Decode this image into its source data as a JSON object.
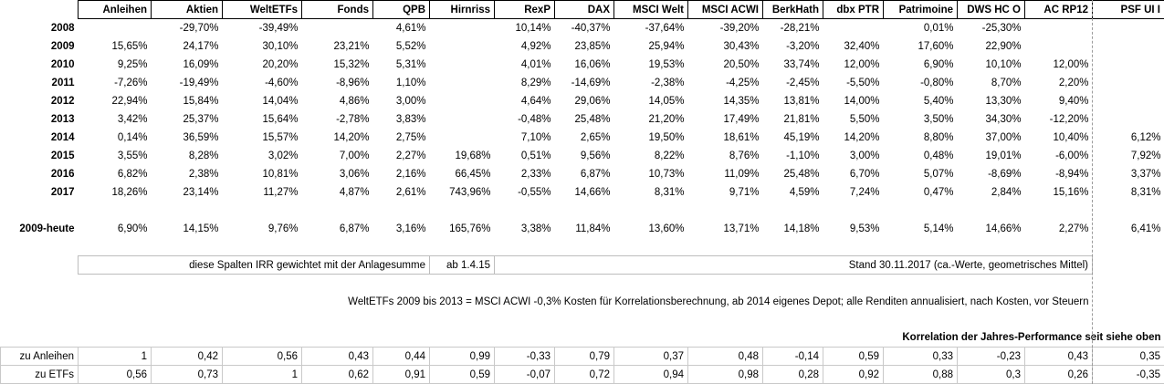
{
  "colors": {
    "negative_value": "#fe0000",
    "muted_value": "#a6a6a6",
    "muted_negative_value": "#f29b9b",
    "header_border": "#000000",
    "note_border": "#bdbdbd",
    "correlation_grid": "#c9c9c9",
    "page_break_line": "#9b9b9b"
  },
  "style_codes": {
    "h": "column-header",
    "y": "year-label-bold",
    "yg": "year-label-gray",
    "n": "negative-red",
    "g": "muted-gray",
    "nm": "muted-red",
    "nb": "note-box-left",
    "nbc": "note-box-center",
    "tc": "note-center-plain",
    "kb": "section-heading-bold",
    "cb": "correlation-value-box",
    "cbl": "correlation-label-box"
  },
  "table": {
    "columns": [
      "",
      "Anleihen",
      "Aktien",
      "WeltETFs",
      "Fonds",
      "QPB",
      "Hirnriss",
      "RexP",
      "DAX",
      "MSCI Welt",
      "MSCI ACWI",
      "BerkHath",
      "dbx PTR",
      "Patrimoine",
      "DWS HC O",
      "AC RP12",
      "PSF UI I"
    ],
    "rows": [
      {
        "name": "row-2008",
        "cells": [
          [
            "2008",
            "yg"
          ],
          [
            "",
            ""
          ],
          [
            "-29,70%",
            "n"
          ],
          [
            "-39,49%",
            "n"
          ],
          [
            "",
            ""
          ],
          [
            "4,61%",
            "g"
          ],
          [
            "",
            ""
          ],
          [
            "10,14%",
            "g"
          ],
          [
            "-40,37%",
            "n"
          ],
          [
            "-37,64%",
            "n"
          ],
          [
            "-39,20%",
            "n"
          ],
          [
            "-28,21%",
            "n"
          ],
          [
            "",
            ""
          ],
          [
            "0,01%",
            ""
          ],
          [
            "-25,30%",
            "n"
          ],
          [
            "",
            ""
          ],
          [
            "",
            ""
          ]
        ]
      },
      {
        "name": "row-2009",
        "cells": [
          [
            "2009",
            "y"
          ],
          [
            "15,65%",
            ""
          ],
          [
            "24,17%",
            ""
          ],
          [
            "30,10%",
            "g"
          ],
          [
            "23,21%",
            ""
          ],
          [
            "5,52%",
            "g"
          ],
          [
            "",
            ""
          ],
          [
            "4,92%",
            ""
          ],
          [
            "23,85%",
            ""
          ],
          [
            "25,94%",
            ""
          ],
          [
            "30,43%",
            ""
          ],
          [
            "-3,20%",
            "n"
          ],
          [
            "32,40%",
            ""
          ],
          [
            "17,60%",
            ""
          ],
          [
            "22,90%",
            ""
          ],
          [
            "",
            ""
          ],
          [
            "",
            ""
          ]
        ]
      },
      {
        "name": "row-2010",
        "cells": [
          [
            "2010",
            "y"
          ],
          [
            "9,25%",
            ""
          ],
          [
            "16,09%",
            ""
          ],
          [
            "20,20%",
            "g"
          ],
          [
            "15,32%",
            ""
          ],
          [
            "5,31%",
            "g"
          ],
          [
            "",
            ""
          ],
          [
            "4,01%",
            ""
          ],
          [
            "16,06%",
            ""
          ],
          [
            "19,53%",
            ""
          ],
          [
            "20,50%",
            ""
          ],
          [
            "33,74%",
            ""
          ],
          [
            "12,00%",
            ""
          ],
          [
            "6,90%",
            ""
          ],
          [
            "10,10%",
            ""
          ],
          [
            "12,00%",
            ""
          ],
          [
            "",
            ""
          ]
        ]
      },
      {
        "name": "row-2011",
        "cells": [
          [
            "2011",
            "y"
          ],
          [
            "-7,26%",
            "n"
          ],
          [
            "-19,49%",
            "n"
          ],
          [
            "-4,60%",
            "nm"
          ],
          [
            "-8,96%",
            "n"
          ],
          [
            "1,10%",
            "g"
          ],
          [
            "",
            ""
          ],
          [
            "8,29%",
            ""
          ],
          [
            "-14,69%",
            "n"
          ],
          [
            "-2,38%",
            "n"
          ],
          [
            "-4,25%",
            "n"
          ],
          [
            "-2,45%",
            "n"
          ],
          [
            "-5,50%",
            "n"
          ],
          [
            "-0,80%",
            "n"
          ],
          [
            "8,70%",
            ""
          ],
          [
            "2,20%",
            ""
          ],
          [
            "",
            ""
          ]
        ]
      },
      {
        "name": "row-2012",
        "cells": [
          [
            "2012",
            "y"
          ],
          [
            "22,94%",
            ""
          ],
          [
            "15,84%",
            ""
          ],
          [
            "14,04%",
            "g"
          ],
          [
            "4,86%",
            ""
          ],
          [
            "3,00%",
            "g"
          ],
          [
            "",
            ""
          ],
          [
            "4,64%",
            ""
          ],
          [
            "29,06%",
            ""
          ],
          [
            "14,05%",
            ""
          ],
          [
            "14,35%",
            ""
          ],
          [
            "13,81%",
            ""
          ],
          [
            "14,00%",
            ""
          ],
          [
            "5,40%",
            ""
          ],
          [
            "13,30%",
            ""
          ],
          [
            "9,40%",
            ""
          ],
          [
            "",
            ""
          ]
        ]
      },
      {
        "name": "row-2013",
        "cells": [
          [
            "2013",
            "y"
          ],
          [
            "3,42%",
            ""
          ],
          [
            "25,37%",
            ""
          ],
          [
            "15,64%",
            "g"
          ],
          [
            "-2,78%",
            "n"
          ],
          [
            "3,83%",
            ""
          ],
          [
            "",
            ""
          ],
          [
            "-0,48%",
            "n"
          ],
          [
            "25,48%",
            ""
          ],
          [
            "21,20%",
            ""
          ],
          [
            "17,49%",
            ""
          ],
          [
            "21,81%",
            ""
          ],
          [
            "5,50%",
            ""
          ],
          [
            "3,50%",
            ""
          ],
          [
            "34,30%",
            ""
          ],
          [
            "-12,20%",
            "n"
          ],
          [
            "",
            ""
          ]
        ]
      },
      {
        "name": "row-2014",
        "cells": [
          [
            "2014",
            "y"
          ],
          [
            "0,14%",
            ""
          ],
          [
            "36,59%",
            ""
          ],
          [
            "15,57%",
            ""
          ],
          [
            "14,20%",
            ""
          ],
          [
            "2,75%",
            ""
          ],
          [
            "",
            ""
          ],
          [
            "7,10%",
            ""
          ],
          [
            "2,65%",
            ""
          ],
          [
            "19,50%",
            ""
          ],
          [
            "18,61%",
            ""
          ],
          [
            "45,19%",
            ""
          ],
          [
            "14,20%",
            ""
          ],
          [
            "8,80%",
            ""
          ],
          [
            "37,00%",
            ""
          ],
          [
            "10,40%",
            ""
          ],
          [
            "6,12%",
            ""
          ]
        ]
      },
      {
        "name": "row-2015",
        "cells": [
          [
            "2015",
            "y"
          ],
          [
            "3,55%",
            ""
          ],
          [
            "8,28%",
            ""
          ],
          [
            "3,02%",
            ""
          ],
          [
            "7,00%",
            ""
          ],
          [
            "2,27%",
            ""
          ],
          [
            "19,68%",
            ""
          ],
          [
            "0,51%",
            ""
          ],
          [
            "9,56%",
            ""
          ],
          [
            "8,22%",
            ""
          ],
          [
            "8,76%",
            ""
          ],
          [
            "-1,10%",
            "n"
          ],
          [
            "3,00%",
            ""
          ],
          [
            "0,48%",
            ""
          ],
          [
            "19,01%",
            ""
          ],
          [
            "-6,00%",
            "n"
          ],
          [
            "7,92%",
            ""
          ]
        ]
      },
      {
        "name": "row-2016",
        "cells": [
          [
            "2016",
            "y"
          ],
          [
            "6,82%",
            ""
          ],
          [
            "2,38%",
            ""
          ],
          [
            "10,81%",
            ""
          ],
          [
            "3,06%",
            ""
          ],
          [
            "2,16%",
            ""
          ],
          [
            "66,45%",
            ""
          ],
          [
            "2,33%",
            ""
          ],
          [
            "6,87%",
            ""
          ],
          [
            "10,73%",
            ""
          ],
          [
            "11,09%",
            ""
          ],
          [
            "25,48%",
            ""
          ],
          [
            "6,70%",
            ""
          ],
          [
            "5,07%",
            ""
          ],
          [
            "-8,69%",
            "n"
          ],
          [
            "-8,94%",
            "n"
          ],
          [
            "3,37%",
            ""
          ]
        ]
      },
      {
        "name": "row-2017",
        "cells": [
          [
            "2017",
            "y"
          ],
          [
            "18,26%",
            ""
          ],
          [
            "23,14%",
            ""
          ],
          [
            "11,27%",
            ""
          ],
          [
            "4,87%",
            ""
          ],
          [
            "2,61%",
            ""
          ],
          [
            "743,96%",
            ""
          ],
          [
            "-0,55%",
            "n"
          ],
          [
            "14,66%",
            ""
          ],
          [
            "8,31%",
            ""
          ],
          [
            "9,71%",
            ""
          ],
          [
            "4,59%",
            ""
          ],
          [
            "7,24%",
            ""
          ],
          [
            "0,47%",
            ""
          ],
          [
            "2,84%",
            ""
          ],
          [
            "15,16%",
            ""
          ],
          [
            "8,31%",
            ""
          ]
        ]
      },
      {
        "name": "spacer-row",
        "cells": []
      },
      {
        "name": "row-2009-heute",
        "cells": [
          [
            "2009-heute",
            "y"
          ],
          [
            "6,90%",
            ""
          ],
          [
            "14,15%",
            ""
          ],
          [
            "9,76%",
            ""
          ],
          [
            "6,87%",
            ""
          ],
          [
            "3,16%",
            ""
          ],
          [
            "165,76%",
            ""
          ],
          [
            "3,38%",
            ""
          ],
          [
            "11,84%",
            ""
          ],
          [
            "13,60%",
            ""
          ],
          [
            "13,71%",
            ""
          ],
          [
            "14,18%",
            ""
          ],
          [
            "9,53%",
            ""
          ],
          [
            "5,14%",
            ""
          ],
          [
            "14,66%",
            ""
          ],
          [
            "2,27%",
            ""
          ],
          [
            "6,41%",
            ""
          ]
        ]
      },
      {
        "name": "spacer-row",
        "cells": []
      },
      {
        "name": "notes-row",
        "cells": [
          [
            "",
            ""
          ],
          [
            "diese Spalten IRR gewichtet mit der Anlagesumme",
            "nb",
            5
          ],
          [
            "ab 1.4.15",
            "nbc"
          ],
          [
            "Stand 30.11.2017 (ca.-Werte, geometrisches Mittel)",
            "nbc",
            9
          ],
          [
            "",
            ""
          ]
        ]
      },
      {
        "name": "spacer-row",
        "cells": []
      },
      {
        "name": "note-row-weltetfs",
        "cells": [
          [
            "",
            ""
          ],
          [
            "WeltETFs 2009 bis 2013 = MSCI ACWI -0,3% Kosten für Korrelationsberechnung, ab 2014 eigenes Depot; alle Renditen annualisiert, nach Kosten, vor Steuern",
            "tc",
            15
          ],
          [
            "",
            ""
          ]
        ]
      },
      {
        "name": "spacer-row",
        "cells": []
      },
      {
        "name": "correlation-header-row",
        "cells": [
          [
            "Korrelation der Jahres-Performance seit siehe oben",
            "kb",
            17
          ]
        ]
      },
      {
        "name": "row-corr-anleihen",
        "cells": [
          [
            "zu Anleihen",
            "cbl"
          ],
          [
            "1",
            "cb"
          ],
          [
            "0,42",
            "cb"
          ],
          [
            "0,56",
            "cb"
          ],
          [
            "0,43",
            "cb"
          ],
          [
            "0,44",
            "cb"
          ],
          [
            "0,99",
            "cb"
          ],
          [
            "-0,33",
            "cb"
          ],
          [
            "0,79",
            "cb"
          ],
          [
            "0,37",
            "cb"
          ],
          [
            "0,48",
            "cb"
          ],
          [
            "-0,14",
            "cb"
          ],
          [
            "0,59",
            "cb"
          ],
          [
            "0,33",
            "cb"
          ],
          [
            "-0,23",
            "cb"
          ],
          [
            "0,43",
            "cb"
          ],
          [
            "0,35",
            "cb"
          ]
        ]
      },
      {
        "name": "row-corr-etfs",
        "cells": [
          [
            "zu ETFs",
            "cbl"
          ],
          [
            "0,56",
            "cb"
          ],
          [
            "0,73",
            "cb"
          ],
          [
            "1",
            "cb"
          ],
          [
            "0,62",
            "cb"
          ],
          [
            "0,91",
            "cb"
          ],
          [
            "0,59",
            "cb"
          ],
          [
            "-0,07",
            "cb"
          ],
          [
            "0,72",
            "cb"
          ],
          [
            "0,94",
            "cb"
          ],
          [
            "0,98",
            "cb"
          ],
          [
            "0,28",
            "cb"
          ],
          [
            "0,92",
            "cb"
          ],
          [
            "0,88",
            "cb"
          ],
          [
            "0,3",
            "cb"
          ],
          [
            "0,26",
            "cb"
          ],
          [
            "-0,35",
            "cb"
          ]
        ]
      }
    ]
  }
}
